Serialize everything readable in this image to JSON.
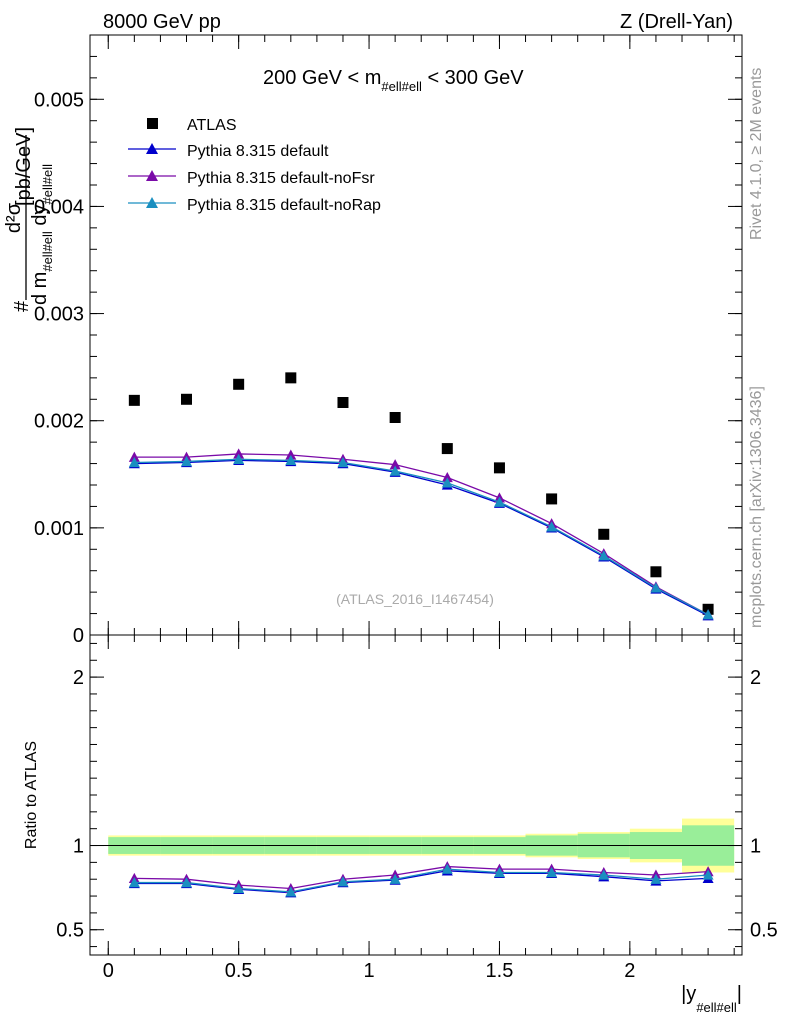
{
  "header": {
    "left": "8000 GeV pp",
    "right": "Z (Drell-Yan)"
  },
  "side": {
    "rivet": "Rivet 4.1.0, ≥ 2M events",
    "mcplots": "mcplots.cern.ch [arXiv:1306.3436]"
  },
  "chart_data": [
    {
      "type": "scatter",
      "title": "200 GeV < m_{#ell#ell} < 300 GeV",
      "title_parts": {
        "pre": "200 GeV < m",
        "sub": "#ell#ell",
        "post": " < 300 GeV"
      },
      "ylabel_parts": {
        "num": "d²σ",
        "den_d": "d m",
        "den_sub1": "#ell#ell",
        "den_dy": " dy",
        "den_sub2": "#ell#ell",
        "hash": "#",
        "unit": "[pb/GeV]"
      },
      "watermark": "(ATLAS_2016_I1467454)",
      "xlim": [
        -0.07,
        2.43
      ],
      "ylim": [
        0,
        0.0056
      ],
      "yticks": [
        0,
        0.001,
        0.002,
        0.003,
        0.004,
        0.005
      ],
      "ytick_labels": [
        "0",
        "0.001",
        "0.002",
        "0.003",
        "0.004",
        "0.005"
      ],
      "x": [
        0.1,
        0.3,
        0.5,
        0.7,
        0.9,
        1.1,
        1.3,
        1.5,
        1.7,
        1.9,
        2.1,
        2.3
      ],
      "bin_edges": [
        0.0,
        0.2,
        0.4,
        0.6,
        0.8,
        1.0,
        1.2,
        1.4,
        1.6,
        1.8,
        2.0,
        2.2,
        2.4
      ],
      "series": [
        {
          "name": "ATLAS",
          "marker": "square",
          "color": "#000000",
          "values": [
            0.00219,
            0.0022,
            0.00234,
            0.0024,
            0.00217,
            0.00203,
            0.00174,
            0.00156,
            0.00127,
            0.00094,
            0.00059,
            0.00024
          ]
        },
        {
          "name": "Pythia 8.315 default",
          "marker": "triangle",
          "color": "#0000cc",
          "values": [
            0.0016,
            0.00161,
            0.00163,
            0.00162,
            0.0016,
            0.00152,
            0.0014,
            0.00123,
            0.001,
            0.00073,
            0.00043,
            0.00018
          ]
        },
        {
          "name": "Pythia 8.315 default-noFsr",
          "marker": "triangle",
          "color": "#7a0aa8",
          "values": [
            0.00166,
            0.00166,
            0.00169,
            0.00168,
            0.00164,
            0.00159,
            0.00147,
            0.00128,
            0.00104,
            0.00076,
            0.00045,
            0.00019
          ]
        },
        {
          "name": "Pythia 8.315 default-noRap",
          "marker": "triangle",
          "color": "#1a8fc0",
          "values": [
            0.00161,
            0.00162,
            0.00164,
            0.00163,
            0.00161,
            0.00153,
            0.00142,
            0.00124,
            0.00101,
            0.00074,
            0.00044,
            0.00019
          ]
        }
      ]
    },
    {
      "type": "scatter",
      "ylabel": "Ratio to ATLAS",
      "xlabel_parts": {
        "pre": "|y",
        "sub": "#ell#ell",
        "post": "|"
      },
      "xlim": [
        -0.07,
        2.43
      ],
      "ylim": [
        0.35,
        2.25
      ],
      "yticks": [
        0.5,
        1,
        2
      ],
      "ytick_labels": [
        "0.5",
        "1",
        "2"
      ],
      "xticks": [
        0,
        0.5,
        1,
        1.5,
        2
      ],
      "xtick_labels": [
        "0",
        "0.5",
        "1",
        "1.5",
        "2"
      ],
      "x": [
        0.1,
        0.3,
        0.5,
        0.7,
        0.9,
        1.1,
        1.3,
        1.5,
        1.7,
        1.9,
        2.1,
        2.3
      ],
      "bin_edges": [
        0.0,
        0.2,
        0.4,
        0.6,
        0.8,
        1.0,
        1.2,
        1.4,
        1.6,
        1.8,
        2.0,
        2.2,
        2.4
      ],
      "stat_band": [
        0.05,
        0.05,
        0.05,
        0.05,
        0.05,
        0.05,
        0.05,
        0.05,
        0.06,
        0.07,
        0.08,
        0.12
      ],
      "total_band": [
        0.06,
        0.06,
        0.06,
        0.06,
        0.06,
        0.06,
        0.06,
        0.06,
        0.07,
        0.08,
        0.1,
        0.16
      ],
      "series": [
        {
          "name": "Pythia 8.315 default",
          "color": "#0000cc",
          "values": [
            0.775,
            0.775,
            0.74,
            0.72,
            0.78,
            0.795,
            0.85,
            0.835,
            0.835,
            0.815,
            0.79,
            0.805
          ]
        },
        {
          "name": "Pythia 8.315 default-noFsr",
          "color": "#7a0aa8",
          "values": [
            0.805,
            0.8,
            0.765,
            0.745,
            0.8,
            0.825,
            0.875,
            0.86,
            0.86,
            0.84,
            0.825,
            0.845
          ]
        },
        {
          "name": "Pythia 8.315 default-noRap",
          "color": "#1a8fc0",
          "values": [
            0.78,
            0.78,
            0.745,
            0.725,
            0.785,
            0.8,
            0.86,
            0.84,
            0.84,
            0.825,
            0.8,
            0.825
          ]
        }
      ]
    }
  ]
}
